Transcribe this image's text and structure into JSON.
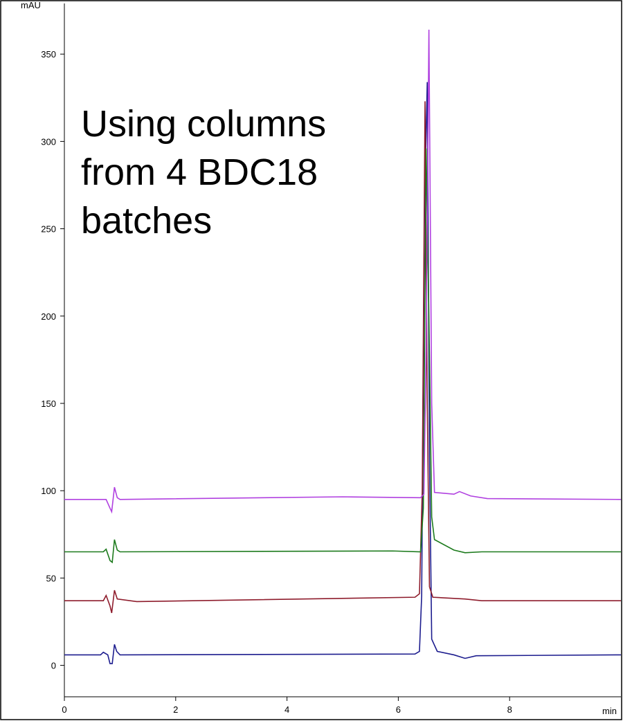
{
  "chart_data": {
    "type": "line",
    "y_label": "mAU",
    "x_label": "min",
    "annotation": [
      "Using columns",
      "from 4 BDC18",
      "batches"
    ],
    "xlim": [
      0,
      10
    ],
    "ylim": [
      -18,
      379
    ],
    "xticks": [
      0,
      2,
      4,
      6,
      8
    ],
    "yticks": [
      0,
      50,
      100,
      150,
      200,
      250,
      300,
      350
    ],
    "grid": false,
    "series": [
      {
        "color": "#1c1c8e",
        "x": [
          0,
          0.65,
          0.7,
          0.78,
          0.82,
          0.86,
          0.9,
          0.94,
          1.0,
          6.3,
          6.38,
          6.42,
          6.47,
          6.52,
          6.56,
          6.6,
          6.7,
          7.0,
          7.2,
          7.4,
          10
        ],
        "values": [
          6,
          6,
          7.5,
          6,
          1,
          1,
          12,
          8,
          6,
          6.5,
          8,
          40,
          260,
          334,
          120,
          15,
          8,
          6,
          4,
          5.5,
          6
        ]
      },
      {
        "color": "#8e1c2c",
        "x": [
          0,
          0.7,
          0.75,
          0.82,
          0.85,
          0.9,
          0.95,
          1.3,
          6.3,
          6.38,
          6.43,
          6.48,
          6.52,
          6.56,
          6.62,
          7.2,
          7.5,
          10
        ],
        "values": [
          37,
          37,
          40,
          34,
          30,
          43,
          38,
          36.5,
          39,
          41,
          100,
          323,
          150,
          45,
          39,
          38,
          37,
          37
        ]
      },
      {
        "color": "#1c7a1c",
        "x": [
          0,
          0.7,
          0.75,
          0.82,
          0.86,
          0.9,
          0.95,
          1.0,
          5.9,
          6.4,
          6.45,
          6.5,
          6.55,
          6.6,
          6.65,
          7.0,
          7.2,
          7.5,
          10
        ],
        "values": [
          65,
          65,
          66.5,
          60,
          59,
          72,
          66,
          65,
          65.5,
          65,
          90,
          296,
          200,
          85,
          72,
          66,
          64.5,
          65,
          65
        ]
      },
      {
        "color": "#b040e0",
        "x": [
          0,
          0.75,
          0.82,
          0.85,
          0.9,
          0.95,
          1.0,
          5.0,
          6.4,
          6.46,
          6.5,
          6.55,
          6.6,
          6.65,
          7.0,
          7.1,
          7.3,
          7.6,
          10
        ],
        "values": [
          95,
          95,
          90,
          88,
          102,
          96,
          95,
          96.5,
          96,
          98,
          180,
          364,
          150,
          99,
          98,
          99.5,
          97,
          95.5,
          95
        ]
      }
    ]
  }
}
